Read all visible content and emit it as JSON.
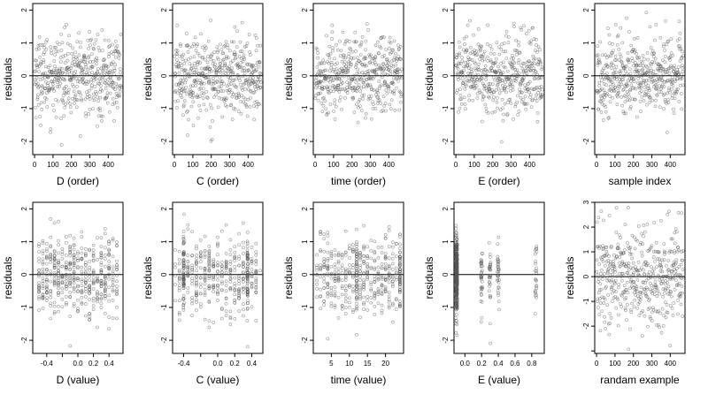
{
  "colors": {
    "point": "#555555",
    "axis": "#000000",
    "zero_line": "#000000",
    "background": "#ffffff"
  },
  "chart_data": [
    {
      "type": "scatter",
      "xlabel": "D (order)",
      "ylabel": "residuals",
      "xlim": [
        -10,
        480
      ],
      "ylim": [
        -2.4,
        2.2
      ],
      "xticks": [
        0,
        100,
        200,
        300,
        400
      ],
      "xtick_labels": [
        "0",
        "100",
        "200",
        "300",
        "400"
      ],
      "yticks": [
        -2,
        -1,
        0,
        1,
        2
      ],
      "ytick_labels": [
        "-2",
        "-1",
        "0",
        "1",
        "2"
      ],
      "hline": 0,
      "points": {
        "n": 470,
        "x_range": [
          1,
          470
        ],
        "x_kind": "index",
        "y_mean": 0.0,
        "y_sd": 0.6,
        "y_min": -2.4,
        "y_max": 2.1
      }
    },
    {
      "type": "scatter",
      "xlabel": "C (order)",
      "ylabel": "residuals",
      "xlim": [
        -10,
        480
      ],
      "ylim": [
        -2.4,
        2.2
      ],
      "xticks": [
        0,
        100,
        200,
        300,
        400
      ],
      "xtick_labels": [
        "0",
        "100",
        "200",
        "300",
        "400"
      ],
      "yticks": [
        -2,
        -1,
        0,
        1,
        2
      ],
      "ytick_labels": [
        "-2",
        "-1",
        "0",
        "1",
        "2"
      ],
      "hline": 0,
      "points": {
        "n": 470,
        "x_range": [
          1,
          470
        ],
        "x_kind": "index",
        "y_mean": 0.0,
        "y_sd": 0.6,
        "y_min": -2.4,
        "y_max": 2.1
      }
    },
    {
      "type": "scatter",
      "xlabel": "time (order)",
      "ylabel": "residuals",
      "xlim": [
        -10,
        480
      ],
      "ylim": [
        -2.4,
        2.2
      ],
      "xticks": [
        0,
        100,
        200,
        300,
        400
      ],
      "xtick_labels": [
        "0",
        "100",
        "200",
        "300",
        "400"
      ],
      "yticks": [
        -2,
        -1,
        0,
        1,
        2
      ],
      "ytick_labels": [
        "-2",
        "-1",
        "0",
        "1",
        "2"
      ],
      "hline": 0,
      "points": {
        "n": 470,
        "x_range": [
          1,
          470
        ],
        "x_kind": "index",
        "y_mean": 0.0,
        "y_sd": 0.6,
        "y_min": -2.4,
        "y_max": 2.1
      }
    },
    {
      "type": "scatter",
      "xlabel": "E (order)",
      "ylabel": "residuals",
      "xlim": [
        -10,
        480
      ],
      "ylim": [
        -2.4,
        2.2
      ],
      "xticks": [
        0,
        100,
        200,
        300,
        400
      ],
      "xtick_labels": [
        "0",
        "100",
        "200",
        "300",
        "400"
      ],
      "yticks": [
        -2,
        -1,
        0,
        1,
        2
      ],
      "ytick_labels": [
        "-2",
        "-1",
        "0",
        "1",
        "2"
      ],
      "hline": 0,
      "points": {
        "n": 470,
        "x_range": [
          1,
          470
        ],
        "x_kind": "index",
        "y_mean": 0.0,
        "y_sd": 0.6,
        "y_min": -2.4,
        "y_max": 2.1
      }
    },
    {
      "type": "scatter",
      "xlabel": "sample index",
      "ylabel": "residuals",
      "xlim": [
        -10,
        480
      ],
      "ylim": [
        -2.4,
        2.2
      ],
      "xticks": [
        0,
        100,
        200,
        300,
        400
      ],
      "xtick_labels": [
        "0",
        "100",
        "200",
        "300",
        "400"
      ],
      "yticks": [
        -2,
        -1,
        0,
        1,
        2
      ],
      "ytick_labels": [
        "-2",
        "-1",
        "0",
        "1",
        "2"
      ],
      "hline": 0,
      "points": {
        "n": 470,
        "x_range": [
          1,
          470
        ],
        "x_kind": "index",
        "y_mean": 0.0,
        "y_sd": 0.6,
        "y_min": -2.4,
        "y_max": 2.1
      }
    },
    {
      "type": "scatter",
      "xlabel": "D (value)",
      "ylabel": "residuals",
      "xlim": [
        -0.58,
        0.58
      ],
      "ylim": [
        -2.4,
        2.2
      ],
      "xticks": [
        -0.4,
        -0.2,
        0.0,
        0.2,
        0.4
      ],
      "xtick_labels": [
        "-0.4",
        "",
        "0.0",
        "0.2",
        "0.4"
      ],
      "yticks": [
        -2,
        -1,
        0,
        1,
        2
      ],
      "ytick_labels": [
        "-2",
        "-1",
        "0",
        "1",
        "2"
      ],
      "hline": 0,
      "points": {
        "n": 470,
        "x_range": [
          -0.52,
          0.52
        ],
        "x_kind": "uniform",
        "y_mean": 0.0,
        "y_sd": 0.6,
        "y_min": -2.4,
        "y_max": 2.1
      }
    },
    {
      "type": "scatter",
      "xlabel": "C (value)",
      "ylabel": "residuals",
      "xlim": [
        -0.53,
        0.53
      ],
      "ylim": [
        -2.4,
        2.2
      ],
      "xticks": [
        -0.4,
        -0.2,
        0.0,
        0.2,
        0.4
      ],
      "xtick_labels": [
        "-0.4",
        "",
        "0.0",
        "0.2",
        "0.4"
      ],
      "yticks": [
        -2,
        -1,
        0,
        1,
        2
      ],
      "ytick_labels": [
        "-2",
        "-1",
        "0",
        "1",
        "2"
      ],
      "hline": 0,
      "points": {
        "n": 470,
        "x_range": [
          -0.48,
          0.48
        ],
        "x_kind": "uniform",
        "x_clusters": [
          -0.4,
          0.35
        ],
        "y_mean": 0.0,
        "y_sd": 0.6,
        "y_min": -2.4,
        "y_max": 2.1
      }
    },
    {
      "type": "scatter",
      "xlabel": "time (value)",
      "ylabel": "residuals",
      "xlim": [
        0,
        25
      ],
      "ylim": [
        -2.4,
        2.2
      ],
      "xticks": [
        5,
        10,
        15,
        20
      ],
      "xtick_labels": [
        "5",
        "10",
        "15",
        "20"
      ],
      "yticks": [
        -2,
        -1,
        0,
        1,
        2
      ],
      "ytick_labels": [
        "-2",
        "-1",
        "0",
        "1",
        "2"
      ],
      "hline": 0,
      "points": {
        "n": 470,
        "x_range": [
          1,
          24
        ],
        "x_kind": "integer",
        "x_clusters": [
          12,
          24
        ],
        "y_mean": 0.0,
        "y_sd": 0.6,
        "y_min": -2.4,
        "y_max": 2.1
      }
    },
    {
      "type": "scatter",
      "xlabel": "E (value)",
      "ylabel": "residuals",
      "xlim": [
        -0.13,
        0.95
      ],
      "ylim": [
        -2.4,
        2.2
      ],
      "xticks": [
        0.0,
        0.2,
        0.4,
        0.6,
        0.8
      ],
      "xtick_labels": [
        "0.0",
        "0.2",
        "0.4",
        "0.6",
        "0.8"
      ],
      "yticks": [
        -2,
        -1,
        0,
        1,
        2
      ],
      "ytick_labels": [
        "-2",
        "-1",
        "0",
        "1",
        "2"
      ],
      "hline": 0,
      "points": {
        "n": 470,
        "x_kind": "discrete",
        "x_levels": [
          -0.1,
          0.2,
          0.3,
          0.4,
          0.85
        ],
        "x_level_weights": [
          0.72,
          0.06,
          0.08,
          0.08,
          0.06
        ],
        "y_mean": 0.0,
        "y_sd": 0.6,
        "y_min": -2.4,
        "y_max": 2.1
      }
    },
    {
      "type": "scatter",
      "xlabel": "randam example",
      "ylabel": "residuals",
      "xlim": [
        -10,
        480
      ],
      "ylim": [
        -3.1,
        3.0
      ],
      "xticks": [
        0,
        100,
        200,
        300,
        400
      ],
      "xtick_labels": [
        "0",
        "100",
        "200",
        "300",
        "400"
      ],
      "yticks": [
        -3,
        -2,
        -1,
        0,
        1,
        2,
        3
      ],
      "ytick_labels": [
        "",
        "-2",
        "-1",
        "0",
        "1",
        "2",
        "3"
      ],
      "hline": 0,
      "points": {
        "n": 470,
        "x_range": [
          1,
          470
        ],
        "x_kind": "index",
        "y_mean": 0.0,
        "y_sd": 1.0,
        "y_min": -3.0,
        "y_max": 2.8
      }
    }
  ]
}
